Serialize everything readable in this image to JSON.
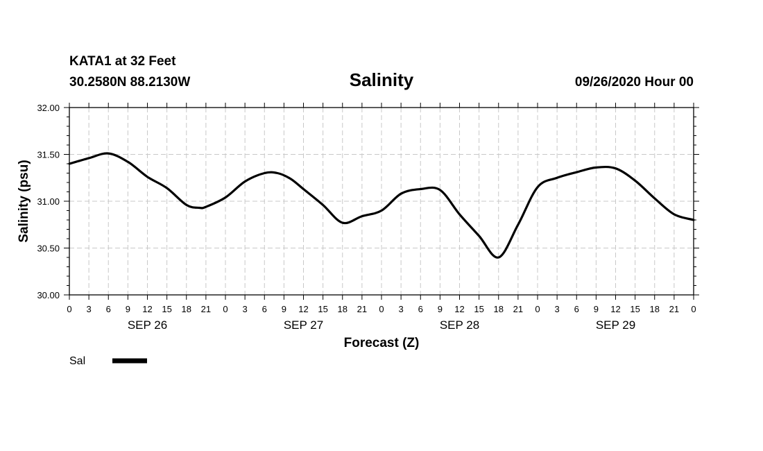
{
  "header": {
    "station": "KATA1 at 32 Feet",
    "coords": "30.2580N 88.2130W",
    "title": "Salinity",
    "datetime": "09/26/2020 Hour 00"
  },
  "legend": {
    "label": "Sal",
    "color": "#000000"
  },
  "chart_data": {
    "type": "line",
    "title": "Salinity",
    "xlabel": "Forecast (Z)",
    "ylabel": "Salinity (psu)",
    "ylim": [
      30.0,
      32.0
    ],
    "yticks": [
      "30.00",
      "30.50",
      "31.00",
      "31.50",
      "32.00"
    ],
    "xlim_hours": [
      0,
      96
    ],
    "x_tick_labels": [
      "0",
      "3",
      "6",
      "9",
      "12",
      "15",
      "18",
      "21",
      "0",
      "3",
      "6",
      "9",
      "12",
      "15",
      "18",
      "21",
      "0",
      "3",
      "6",
      "9",
      "12",
      "15",
      "18",
      "21",
      "0",
      "3",
      "6",
      "9",
      "12",
      "15",
      "18",
      "21",
      "0"
    ],
    "day_labels": [
      "SEP 26",
      "SEP 27",
      "SEP 28",
      "SEP 29"
    ],
    "grid": true,
    "legend_position": "bottom-left",
    "series": [
      {
        "name": "Sal",
        "color": "#000000",
        "x_hours": [
          0,
          3,
          6,
          9,
          12,
          15,
          18,
          20,
          21,
          24,
          27,
          30,
          32,
          34,
          36,
          39,
          42,
          45,
          48,
          51,
          54,
          57,
          60,
          63,
          66,
          69,
          72,
          75,
          78,
          81,
          84,
          87,
          90,
          93,
          96
        ],
        "values": [
          31.4,
          31.46,
          31.51,
          31.42,
          31.26,
          31.14,
          30.96,
          30.93,
          30.94,
          31.04,
          31.21,
          31.3,
          31.3,
          31.24,
          31.13,
          30.96,
          30.77,
          30.84,
          30.9,
          31.08,
          31.13,
          31.12,
          30.86,
          30.63,
          30.4,
          30.75,
          31.15,
          31.25,
          31.31,
          31.36,
          31.35,
          31.22,
          31.03,
          30.86,
          30.8
        ]
      }
    ]
  }
}
